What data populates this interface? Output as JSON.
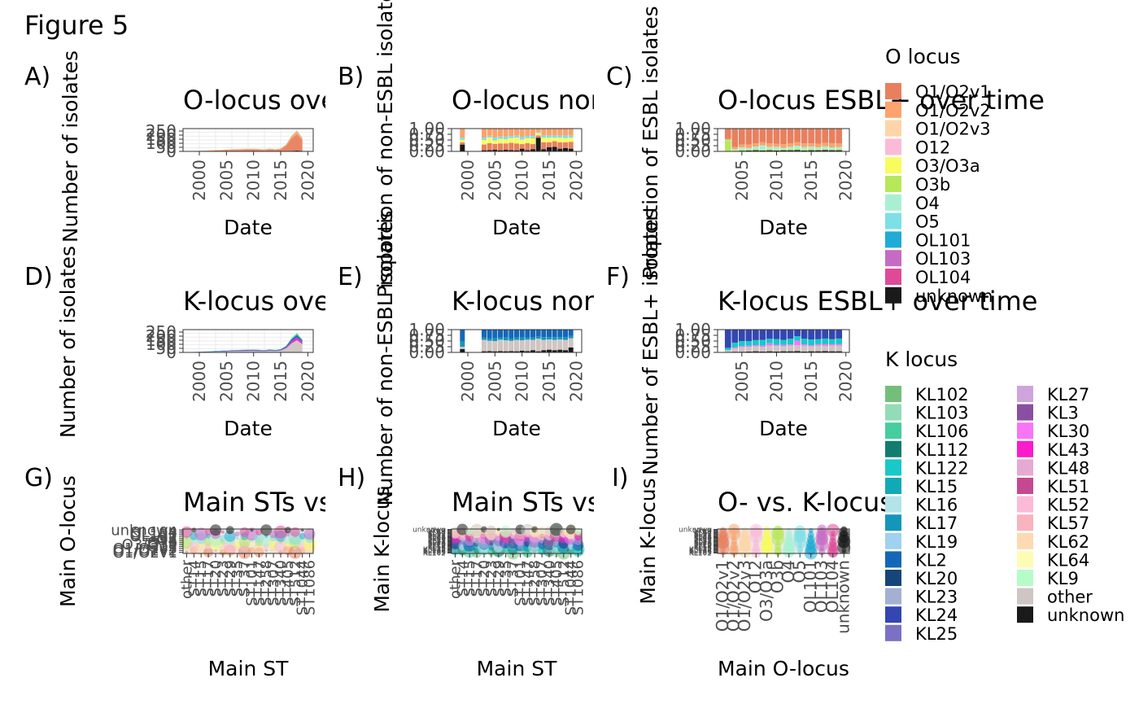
{
  "figure_title": "Figure 5",
  "chart_data": [
    {
      "id": "A",
      "panel_label": "A)",
      "type": "area",
      "title": "O-locus over time",
      "xlabel": "Date",
      "ylabel": "Number of isolates",
      "x": [
        1998,
        2000,
        2002,
        2004,
        2006,
        2008,
        2010,
        2012,
        2013,
        2014,
        2015,
        2016,
        2017,
        2018,
        2019
      ],
      "ylim": [
        0,
        280
      ],
      "yticks": [
        "0",
        "50",
        "100",
        "150",
        "200",
        "250"
      ],
      "xticks": [
        "2000",
        "2005",
        "2010",
        "2015",
        "2020"
      ],
      "series": [
        {
          "name": "unknown",
          "values": [
            1,
            1,
            2,
            2,
            3,
            3,
            4,
            4,
            4,
            4,
            5,
            6,
            8,
            10,
            8
          ]
        },
        {
          "name": "O1/O2v1",
          "values": [
            2,
            3,
            6,
            10,
            14,
            16,
            18,
            12,
            20,
            14,
            20,
            60,
            150,
            200,
            130
          ]
        },
        {
          "name": "O1/O2v2",
          "values": [
            1,
            2,
            4,
            6,
            8,
            10,
            10,
            8,
            10,
            8,
            10,
            18,
            30,
            40,
            25
          ]
        },
        {
          "name": "O4",
          "values": [
            0,
            1,
            1,
            2,
            2,
            3,
            3,
            2,
            3,
            2,
            3,
            5,
            8,
            10,
            7
          ]
        }
      ]
    },
    {
      "id": "B",
      "panel_label": "B)",
      "type": "bar",
      "title": "O-locus non-ESBL over time",
      "xlabel": "Date",
      "ylabel": "Proportion of non-ESBL isolates",
      "ylim": [
        0,
        1
      ],
      "yticks": [
        "0.00",
        "0.25",
        "0.50",
        "0.75",
        "1.00"
      ],
      "xticks": [
        "2000",
        "2005",
        "2010",
        "2015",
        "2020"
      ],
      "x": [
        1999,
        2003,
        2004,
        2005,
        2006,
        2007,
        2008,
        2009,
        2010,
        2011,
        2012,
        2013,
        2014,
        2015,
        2016,
        2017,
        2018,
        2019
      ],
      "series": [
        {
          "name": "unknown",
          "values": [
            0.3,
            0.05,
            0.06,
            0.08,
            0.05,
            0.07,
            0.06,
            0.05,
            0.12,
            0.06,
            0.1,
            0.6,
            0.1,
            0.18,
            0.2,
            0.12,
            0.15,
            0.12
          ]
        },
        {
          "name": "O1/O2v1",
          "values": [
            0.1,
            0.25,
            0.3,
            0.25,
            0.3,
            0.28,
            0.32,
            0.3,
            0.2,
            0.3,
            0.22,
            0.1,
            0.3,
            0.22,
            0.25,
            0.28,
            0.25,
            0.3
          ]
        },
        {
          "name": "O3/O3a",
          "values": [
            0.1,
            0.2,
            0.25,
            0.15,
            0.2,
            0.18,
            0.2,
            0.25,
            0.2,
            0.22,
            0.25,
            0.1,
            0.2,
            0.2,
            0.15,
            0.2,
            0.18,
            0.18
          ]
        },
        {
          "name": "O5",
          "values": [
            0.1,
            0.1,
            0.08,
            0.12,
            0.1,
            0.12,
            0.1,
            0.1,
            0.12,
            0.1,
            0.1,
            0.05,
            0.1,
            0.1,
            0.1,
            0.1,
            0.12,
            0.1
          ]
        },
        {
          "name": "O1/O2v2",
          "values": [
            0.4,
            0.4,
            0.31,
            0.4,
            0.35,
            0.35,
            0.32,
            0.3,
            0.36,
            0.32,
            0.33,
            0.15,
            0.3,
            0.3,
            0.3,
            0.3,
            0.3,
            0.3
          ]
        }
      ]
    },
    {
      "id": "C",
      "panel_label": "C)",
      "type": "bar",
      "title": "O-locus ESBL+ over time",
      "xlabel": "Date",
      "ylabel": "Proportion of ESBL isolates",
      "ylim": [
        0,
        1
      ],
      "yticks": [
        "0.00",
        "0.25",
        "0.50",
        "0.75",
        "1.00"
      ],
      "xticks": [
        "2005",
        "2010",
        "2015",
        "2020"
      ],
      "x": [
        2003,
        2004,
        2005,
        2006,
        2007,
        2008,
        2009,
        2010,
        2011,
        2012,
        2013,
        2014,
        2015,
        2016,
        2017,
        2018,
        2019
      ],
      "series": [
        {
          "name": "unknown",
          "values": [
            0.02,
            0.02,
            0.03,
            0.04,
            0.05,
            0.04,
            0.05,
            0.04,
            0.05,
            0.05,
            0.06,
            0.04,
            0.05,
            0.05,
            0.06,
            0.05,
            0.05
          ]
        },
        {
          "name": "O3b",
          "values": [
            0.45,
            0.03,
            0.05,
            0.03,
            0.04,
            0.03,
            0.05,
            0.04,
            0.03,
            0.05,
            0.04,
            0.05,
            0.04,
            0.03,
            0.04,
            0.03,
            0.04
          ]
        },
        {
          "name": "O4",
          "values": [
            0.03,
            0.05,
            0.1,
            0.08,
            0.12,
            0.2,
            0.1,
            0.12,
            0.08,
            0.1,
            0.15,
            0.1,
            0.12,
            0.1,
            0.12,
            0.1,
            0.1
          ]
        },
        {
          "name": "O1/O2v2",
          "values": [
            0.05,
            0.1,
            0.12,
            0.15,
            0.14,
            0.13,
            0.15,
            0.14,
            0.16,
            0.15,
            0.15,
            0.16,
            0.14,
            0.16,
            0.15,
            0.17,
            0.16
          ]
        },
        {
          "name": "O1/O2v1",
          "values": [
            0.45,
            0.8,
            0.7,
            0.7,
            0.65,
            0.6,
            0.65,
            0.66,
            0.68,
            0.65,
            0.6,
            0.65,
            0.65,
            0.66,
            0.63,
            0.65,
            0.65
          ]
        }
      ]
    },
    {
      "id": "D",
      "panel_label": "D)",
      "type": "area",
      "title": "K-locus over time",
      "xlabel": "Date",
      "ylabel": "Number of isolates",
      "x": [
        1998,
        2000,
        2002,
        2004,
        2006,
        2008,
        2010,
        2012,
        2013,
        2014,
        2015,
        2016,
        2017,
        2018,
        2019
      ],
      "ylim": [
        0,
        280
      ],
      "yticks": [
        "0",
        "50",
        "100",
        "150",
        "200",
        "250"
      ],
      "xticks": [
        "2000",
        "2005",
        "2010",
        "2015",
        "2020"
      ],
      "series": [
        {
          "name": "other",
          "values": [
            2,
            4,
            6,
            10,
            14,
            16,
            18,
            14,
            20,
            16,
            22,
            50,
            110,
            150,
            100
          ]
        },
        {
          "name": "KL43",
          "values": [
            0,
            1,
            2,
            3,
            3,
            4,
            4,
            3,
            4,
            3,
            4,
            10,
            25,
            35,
            25
          ]
        },
        {
          "name": "KL2",
          "values": [
            1,
            2,
            4,
            6,
            8,
            9,
            10,
            8,
            10,
            8,
            10,
            15,
            25,
            30,
            20
          ]
        },
        {
          "name": "KL106",
          "values": [
            1,
            1,
            2,
            3,
            3,
            4,
            4,
            3,
            4,
            3,
            4,
            8,
            15,
            20,
            15
          ]
        }
      ]
    },
    {
      "id": "E",
      "panel_label": "E)",
      "type": "bar",
      "title": "K-locus non-ESBL over time",
      "xlabel": "Date",
      "ylabel": "Number of non-ESBL isolates",
      "ylim": [
        0,
        1
      ],
      "yticks": [
        "0.00",
        "0.25",
        "0.50",
        "0.75",
        "1.00"
      ],
      "xticks": [
        "2000",
        "2005",
        "2010",
        "2015",
        "2020"
      ],
      "x": [
        1999,
        2003,
        2004,
        2005,
        2006,
        2007,
        2008,
        2009,
        2010,
        2011,
        2012,
        2013,
        2014,
        2015,
        2016,
        2017,
        2018,
        2019
      ],
      "series": [
        {
          "name": "unknown",
          "values": [
            0.15,
            0.05,
            0.06,
            0.05,
            0.06,
            0.05,
            0.06,
            0.05,
            0.08,
            0.06,
            0.1,
            0.05,
            0.1,
            0.12,
            0.1,
            0.12,
            0.1,
            0.22
          ]
        },
        {
          "name": "other",
          "values": [
            0.1,
            0.5,
            0.45,
            0.45,
            0.5,
            0.48,
            0.45,
            0.5,
            0.45,
            0.5,
            0.45,
            0.55,
            0.45,
            0.45,
            0.45,
            0.45,
            0.45,
            0.4
          ]
        },
        {
          "name": "KL17",
          "values": [
            0.25,
            0.1,
            0.1,
            0.12,
            0.1,
            0.12,
            0.1,
            0.1,
            0.12,
            0.1,
            0.1,
            0.1,
            0.12,
            0.1,
            0.12,
            0.1,
            0.12,
            0.1
          ]
        },
        {
          "name": "KL2",
          "values": [
            0.5,
            0.35,
            0.39,
            0.38,
            0.34,
            0.35,
            0.39,
            0.35,
            0.35,
            0.34,
            0.35,
            0.3,
            0.33,
            0.33,
            0.33,
            0.33,
            0.33,
            0.28
          ]
        }
      ]
    },
    {
      "id": "F",
      "panel_label": "F)",
      "type": "bar",
      "title": "K-locus ESBL+ over time",
      "xlabel": "Date",
      "ylabel": "Number of ESBL+ isolates",
      "ylim": [
        0,
        1
      ],
      "yticks": [
        "0.00",
        "0.25",
        "0.50",
        "0.75",
        "1.00"
      ],
      "xticks": [
        "2005",
        "2010",
        "2015",
        "2020"
      ],
      "x": [
        2003,
        2004,
        2005,
        2006,
        2007,
        2008,
        2009,
        2010,
        2011,
        2012,
        2013,
        2014,
        2015,
        2016,
        2017,
        2018,
        2019
      ],
      "series": [
        {
          "name": "unknown",
          "values": [
            0.02,
            0.03,
            0.03,
            0.04,
            0.05,
            0.04,
            0.05,
            0.04,
            0.05,
            0.05,
            0.06,
            0.04,
            0.05,
            0.05,
            0.06,
            0.05,
            0.05
          ]
        },
        {
          "name": "other",
          "values": [
            0.08,
            0.15,
            0.2,
            0.2,
            0.22,
            0.2,
            0.25,
            0.25,
            0.22,
            0.25,
            0.25,
            0.25,
            0.22,
            0.25,
            0.22,
            0.25,
            0.25
          ]
        },
        {
          "name": "KL30",
          "values": [
            0.0,
            0.05,
            0.05,
            0.06,
            0.05,
            0.06,
            0.1,
            0.05,
            0.06,
            0.05,
            0.2,
            0.06,
            0.05,
            0.06,
            0.08,
            0.06,
            0.06
          ]
        },
        {
          "name": "KL122",
          "values": [
            0.1,
            0.2,
            0.22,
            0.2,
            0.22,
            0.25,
            0.2,
            0.25,
            0.22,
            0.25,
            0.2,
            0.25,
            0.25,
            0.22,
            0.25,
            0.22,
            0.25
          ]
        },
        {
          "name": "KL24",
          "values": [
            0.8,
            0.57,
            0.5,
            0.5,
            0.46,
            0.45,
            0.4,
            0.41,
            0.45,
            0.4,
            0.29,
            0.4,
            0.43,
            0.42,
            0.39,
            0.42,
            0.39
          ]
        }
      ]
    },
    {
      "id": "G",
      "panel_label": "G)",
      "type": "scatter",
      "title": "Main STs vs O-locus",
      "xlabel": "Main ST",
      "ylabel": "Main O-locus",
      "xticks": [
        "other",
        "ST14",
        "ST15",
        "ST17",
        "ST20",
        "ST23",
        "ST29",
        "ST35",
        "ST37",
        "ST101",
        "ST147",
        "ST258",
        "ST307",
        "ST340",
        "ST405",
        "ST512",
        "ST1044",
        "ST1086"
      ],
      "yticks": [
        "O1/O2v1",
        "O1/O2v2",
        "O1/O2v3",
        "O12",
        "O3/O3a",
        "O3b",
        "O4",
        "O5",
        "OL101",
        "OL103",
        "OL104",
        "unknown"
      ],
      "visible_tick_fragments": [
        "other",
        "ST14",
        "unknown",
        "O1/O2v1"
      ]
    },
    {
      "id": "H",
      "panel_label": "H)",
      "type": "scatter",
      "title": "Main STs vs K-locus",
      "xlabel": "Main ST",
      "ylabel": "Main K-locus",
      "xticks": [
        "other",
        "ST14",
        "ST15",
        "ST17",
        "ST20",
        "ST23",
        "ST29",
        "ST35",
        "ST37",
        "ST101",
        "ST147",
        "ST258",
        "ST307",
        "ST340",
        "ST405",
        "ST512",
        "ST1044",
        "ST1086"
      ],
      "yticks": [
        "KL102",
        "KL103",
        "KL106",
        "KL112",
        "KL122",
        "KL15",
        "KL16",
        "KL17",
        "KL19",
        "KL2",
        "KL20",
        "KL23",
        "KL24",
        "KL25",
        "KL27",
        "KL3",
        "KL30",
        "KL43",
        "KL48",
        "KL51",
        "KL52",
        "KL57",
        "KL62",
        "KL64",
        "KL9",
        "other",
        "unknown"
      ],
      "visible_tick_fragments": [
        "other",
        "unknown"
      ]
    },
    {
      "id": "I",
      "panel_label": "I)",
      "type": "scatter",
      "title": "O- vs. K-locus",
      "xlabel": "Main O-locus",
      "ylabel": "Main K-locus",
      "xticks": [
        "O1/O2v1",
        "O1/O2v2",
        "O1/O2v3",
        "O12",
        "O3/O3a",
        "O3b",
        "O4",
        "O5",
        "OL101",
        "OL103",
        "OL104",
        "unknown"
      ],
      "yticks": [
        "KL102",
        "KL103",
        "KL106",
        "KL112",
        "KL122",
        "KL15",
        "KL16",
        "KL17",
        "KL19",
        "KL2",
        "KL20",
        "KL23",
        "KL24",
        "KL25",
        "KL27",
        "KL3",
        "KL30",
        "KL43",
        "KL48",
        "KL51",
        "KL52",
        "KL57",
        "KL62",
        "KL64",
        "KL9",
        "other",
        "unknown"
      ],
      "visible_tick_fragments": [
        "unknown"
      ]
    }
  ],
  "legend_o": {
    "title": "O locus",
    "items": [
      {
        "name": "O1/O2v1",
        "color": "#E8805E"
      },
      {
        "name": "O1/O2v2",
        "color": "#FCA36E"
      },
      {
        "name": "O1/O2v3",
        "color": "#FDD5A8"
      },
      {
        "name": "O12",
        "color": "#FBBBD7"
      },
      {
        "name": "O3/O3a",
        "color": "#F8FC5E"
      },
      {
        "name": "O3b",
        "color": "#B7E85A"
      },
      {
        "name": "O4",
        "color": "#A9F0D2"
      },
      {
        "name": "O5",
        "color": "#7DE0E6"
      },
      {
        "name": "OL101",
        "color": "#1EACD6"
      },
      {
        "name": "OL103",
        "color": "#C66BC4"
      },
      {
        "name": "OL104",
        "color": "#DF4A97"
      },
      {
        "name": "unknown",
        "color": "#1A1A1A"
      }
    ]
  },
  "legend_k": {
    "title": "K locus",
    "items": [
      {
        "name": "KL102",
        "color": "#73BF79"
      },
      {
        "name": "KL103",
        "color": "#94DBB8"
      },
      {
        "name": "KL106",
        "color": "#45CDA0"
      },
      {
        "name": "KL112",
        "color": "#127C6E"
      },
      {
        "name": "KL122",
        "color": "#19C8C8"
      },
      {
        "name": "KL15",
        "color": "#12A9B7"
      },
      {
        "name": "KL16",
        "color": "#B2E4EA"
      },
      {
        "name": "KL17",
        "color": "#1396B9"
      },
      {
        "name": "KL19",
        "color": "#A0D1EE"
      },
      {
        "name": "KL2",
        "color": "#1467B8"
      },
      {
        "name": "KL20",
        "color": "#16457A"
      },
      {
        "name": "KL23",
        "color": "#A3B0D4"
      },
      {
        "name": "KL24",
        "color": "#3346B1"
      },
      {
        "name": "KL25",
        "color": "#7C70C6"
      },
      {
        "name": "KL27",
        "color": "#CFA3DE"
      },
      {
        "name": "KL3",
        "color": "#8A4FA0"
      },
      {
        "name": "KL30",
        "color": "#F775F4"
      },
      {
        "name": "KL43",
        "color": "#FA1BCB"
      },
      {
        "name": "KL48",
        "color": "#E6A9D5"
      },
      {
        "name": "KL51",
        "color": "#C54990"
      },
      {
        "name": "KL52",
        "color": "#FBBAD8"
      },
      {
        "name": "KL57",
        "color": "#F9B3BD"
      },
      {
        "name": "KL62",
        "color": "#FDDAB2"
      },
      {
        "name": "KL64",
        "color": "#FDFCB4"
      },
      {
        "name": "KL9",
        "color": "#B5FCC9"
      },
      {
        "name": "other",
        "color": "#CFC5C3"
      },
      {
        "name": "unknown",
        "color": "#1A1A1A"
      }
    ]
  }
}
